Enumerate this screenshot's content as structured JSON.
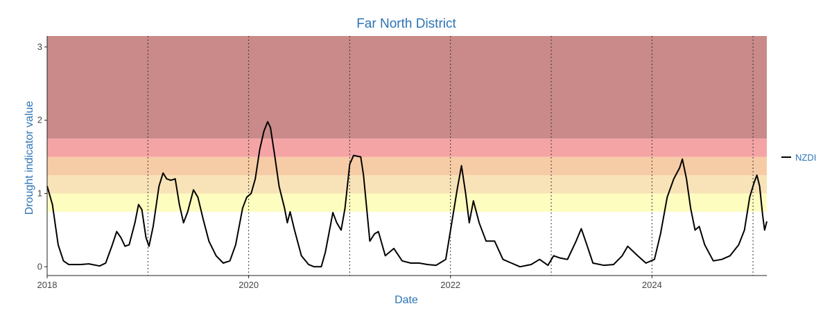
{
  "chart_data": {
    "type": "line",
    "title": "Far North District",
    "xlabel": "Date",
    "ylabel": "Drought indicator value",
    "xlim": [
      "2018-01-01",
      "2025-02-20"
    ],
    "ylim": [
      -0.12,
      3.15
    ],
    "x_ticks": [
      "2018",
      "2020",
      "2022",
      "2024"
    ],
    "y_ticks": [
      0,
      1,
      2,
      3
    ],
    "year_boundaries": [
      "2019-01-01",
      "2020-01-01",
      "2021-01-01",
      "2022-01-01",
      "2023-01-01",
      "2024-01-01",
      "2025-01-01"
    ],
    "grid": false,
    "legend_position": "right",
    "bands": [
      {
        "from": 0.75,
        "to": 1.0,
        "color": "#fefdc0"
      },
      {
        "from": 1.0,
        "to": 1.25,
        "color": "#f8e3b8"
      },
      {
        "from": 1.25,
        "to": 1.5,
        "color": "#f6cca6"
      },
      {
        "from": 1.5,
        "to": 1.75,
        "color": "#f5a4a6"
      },
      {
        "from": 1.75,
        "to": 3.15,
        "color": "#c98a89"
      }
    ],
    "series": [
      {
        "name": "NZDI",
        "color": "#000000",
        "points": [
          [
            "2018-01-01",
            1.1
          ],
          [
            "2018-01-20",
            0.85
          ],
          [
            "2018-02-10",
            0.3
          ],
          [
            "2018-03-01",
            0.08
          ],
          [
            "2018-03-20",
            0.03
          ],
          [
            "2018-05-01",
            0.03
          ],
          [
            "2018-06-01",
            0.04
          ],
          [
            "2018-07-10",
            0.01
          ],
          [
            "2018-08-01",
            0.05
          ],
          [
            "2018-08-25",
            0.3
          ],
          [
            "2018-09-10",
            0.48
          ],
          [
            "2018-09-25",
            0.4
          ],
          [
            "2018-10-10",
            0.28
          ],
          [
            "2018-10-25",
            0.3
          ],
          [
            "2018-11-15",
            0.6
          ],
          [
            "2018-11-28",
            0.85
          ],
          [
            "2018-12-10",
            0.78
          ],
          [
            "2018-12-25",
            0.4
          ],
          [
            "2019-01-05",
            0.28
          ],
          [
            "2019-01-20",
            0.55
          ],
          [
            "2019-02-10",
            1.1
          ],
          [
            "2019-02-25",
            1.28
          ],
          [
            "2019-03-10",
            1.2
          ],
          [
            "2019-03-25",
            1.18
          ],
          [
            "2019-04-10",
            1.2
          ],
          [
            "2019-04-25",
            0.85
          ],
          [
            "2019-05-10",
            0.6
          ],
          [
            "2019-05-25",
            0.75
          ],
          [
            "2019-06-15",
            1.05
          ],
          [
            "2019-07-01",
            0.95
          ],
          [
            "2019-07-20",
            0.65
          ],
          [
            "2019-08-10",
            0.35
          ],
          [
            "2019-09-05",
            0.15
          ],
          [
            "2019-10-01",
            0.05
          ],
          [
            "2019-10-25",
            0.08
          ],
          [
            "2019-11-15",
            0.3
          ],
          [
            "2019-12-10",
            0.8
          ],
          [
            "2019-12-25",
            0.95
          ],
          [
            "2020-01-10",
            1.0
          ],
          [
            "2020-01-25",
            1.2
          ],
          [
            "2020-02-10",
            1.6
          ],
          [
            "2020-02-25",
            1.85
          ],
          [
            "2020-03-10",
            1.98
          ],
          [
            "2020-03-20",
            1.9
          ],
          [
            "2020-04-05",
            1.5
          ],
          [
            "2020-04-20",
            1.1
          ],
          [
            "2020-05-10",
            0.8
          ],
          [
            "2020-05-20",
            0.6
          ],
          [
            "2020-05-30",
            0.75
          ],
          [
            "2020-06-15",
            0.5
          ],
          [
            "2020-07-10",
            0.15
          ],
          [
            "2020-08-05",
            0.03
          ],
          [
            "2020-08-25",
            0.0
          ],
          [
            "2020-09-20",
            0.0
          ],
          [
            "2020-10-05",
            0.2
          ],
          [
            "2020-10-20",
            0.5
          ],
          [
            "2020-11-01",
            0.74
          ],
          [
            "2020-11-15",
            0.6
          ],
          [
            "2020-12-01",
            0.5
          ],
          [
            "2020-12-15",
            0.8
          ],
          [
            "2021-01-01",
            1.4
          ],
          [
            "2021-01-15",
            1.52
          ],
          [
            "2021-02-10",
            1.5
          ],
          [
            "2021-02-20",
            1.25
          ],
          [
            "2021-03-15",
            0.35
          ],
          [
            "2021-04-01",
            0.45
          ],
          [
            "2021-04-15",
            0.48
          ],
          [
            "2021-05-10",
            0.15
          ],
          [
            "2021-06-10",
            0.25
          ],
          [
            "2021-07-10",
            0.08
          ],
          [
            "2021-08-10",
            0.05
          ],
          [
            "2021-09-10",
            0.05
          ],
          [
            "2021-10-10",
            0.03
          ],
          [
            "2021-11-10",
            0.02
          ],
          [
            "2021-12-15",
            0.1
          ],
          [
            "2022-01-10",
            0.7
          ],
          [
            "2022-01-25",
            1.05
          ],
          [
            "2022-02-10",
            1.38
          ],
          [
            "2022-02-25",
            1.0
          ],
          [
            "2022-03-10",
            0.6
          ],
          [
            "2022-03-25",
            0.9
          ],
          [
            "2022-04-15",
            0.6
          ],
          [
            "2022-05-10",
            0.35
          ],
          [
            "2022-06-10",
            0.35
          ],
          [
            "2022-07-10",
            0.1
          ],
          [
            "2022-08-10",
            0.05
          ],
          [
            "2022-09-10",
            0.0
          ],
          [
            "2022-10-20",
            0.03
          ],
          [
            "2022-11-20",
            0.1
          ],
          [
            "2022-12-20",
            0.02
          ],
          [
            "2023-01-10",
            0.15
          ],
          [
            "2023-02-01",
            0.12
          ],
          [
            "2023-03-01",
            0.1
          ],
          [
            "2023-04-01",
            0.35
          ],
          [
            "2023-04-20",
            0.52
          ],
          [
            "2023-05-10",
            0.3
          ],
          [
            "2023-06-01",
            0.05
          ],
          [
            "2023-07-10",
            0.02
          ],
          [
            "2023-08-15",
            0.03
          ],
          [
            "2023-09-15",
            0.15
          ],
          [
            "2023-10-05",
            0.28
          ],
          [
            "2023-11-10",
            0.15
          ],
          [
            "2023-12-10",
            0.05
          ],
          [
            "2024-01-10",
            0.1
          ],
          [
            "2024-02-01",
            0.45
          ],
          [
            "2024-02-25",
            0.95
          ],
          [
            "2024-03-20",
            1.2
          ],
          [
            "2024-04-10",
            1.35
          ],
          [
            "2024-04-20",
            1.47
          ],
          [
            "2024-05-05",
            1.2
          ],
          [
            "2024-05-20",
            0.8
          ],
          [
            "2024-06-05",
            0.5
          ],
          [
            "2024-06-20",
            0.55
          ],
          [
            "2024-07-10",
            0.3
          ],
          [
            "2024-08-10",
            0.08
          ],
          [
            "2024-09-10",
            0.1
          ],
          [
            "2024-10-10",
            0.15
          ],
          [
            "2024-11-10",
            0.3
          ],
          [
            "2024-12-01",
            0.5
          ],
          [
            "2024-12-20",
            0.95
          ],
          [
            "2025-01-05",
            1.15
          ],
          [
            "2025-01-15",
            1.25
          ],
          [
            "2025-01-25",
            1.1
          ],
          [
            "2025-02-05",
            0.7
          ],
          [
            "2025-02-12",
            0.5
          ],
          [
            "2025-02-20",
            0.62
          ]
        ]
      }
    ]
  }
}
